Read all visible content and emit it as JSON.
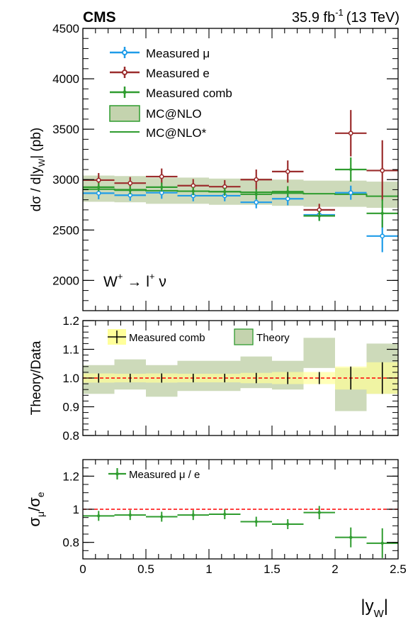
{
  "header": {
    "experiment": "CMS",
    "luminosity": "35.9 fb",
    "lumi_exponent": "-1",
    "energy": "(13 TeV)"
  },
  "colors": {
    "mu": "#1f9ce8",
    "e": "#9b2d2d",
    "comb": "#2f9c2f",
    "mc_fill": "#c4d3ae",
    "mc_edge": "#2f9c2f",
    "unc_band": "#ffff9a",
    "ref_line": "#ff0000"
  },
  "chart_data": [
    {
      "type": "scatter",
      "panel": "top",
      "ylabel_parts": [
        "dσ / d|y",
        "W",
        "| (pb)"
      ],
      "ylim": [
        1700,
        4500
      ],
      "xlim": [
        0,
        2.5
      ],
      "yticks": [
        2000,
        2500,
        3000,
        3500,
        4000,
        4500
      ],
      "annotation": {
        "main": "W",
        "sup1": "+",
        "arrow": "→ l",
        "sup2": "+",
        "tail": " ν"
      },
      "bin_edges": [
        0,
        0.25,
        0.5,
        0.75,
        1.0,
        1.25,
        1.5,
        1.75,
        2.0,
        2.25,
        2.5
      ],
      "series": [
        {
          "name": "Measured μ",
          "key": "mu",
          "x": [
            0.125,
            0.375,
            0.625,
            0.875,
            1.125,
            1.375,
            1.625,
            1.875,
            2.125,
            2.375
          ],
          "values": [
            2865,
            2845,
            2870,
            2840,
            2840,
            2775,
            2810,
            2650,
            2870,
            2440
          ],
          "err": [
            60,
            55,
            60,
            55,
            55,
            60,
            65,
            60,
            70,
            160
          ]
        },
        {
          "name": "Measured e",
          "key": "e",
          "x": [
            0.125,
            0.375,
            0.625,
            0.875,
            1.125,
            1.375,
            1.625,
            1.875,
            2.125,
            2.375
          ],
          "values": [
            2995,
            2965,
            3030,
            2940,
            2930,
            3000,
            3080,
            2700,
            3460,
            3090
          ],
          "err": [
            70,
            60,
            80,
            65,
            65,
            100,
            110,
            60,
            230,
            300
          ]
        },
        {
          "name": "Measured comb",
          "key": "comb",
          "x": [
            0.125,
            0.375,
            0.625,
            0.875,
            1.125,
            1.375,
            1.625,
            1.875,
            2.125,
            2.375
          ],
          "values": [
            2925,
            2895,
            2925,
            2885,
            2880,
            2855,
            2880,
            2640,
            3100,
            2665
          ],
          "err": [
            40,
            40,
            45,
            40,
            40,
            50,
            55,
            50,
            120,
            140
          ]
        },
        {
          "name": "MC@NLO",
          "key": "mc_band",
          "values": [
            2910,
            2905,
            2890,
            2890,
            2880,
            2880,
            2870,
            2860,
            2860,
            2850
          ],
          "err": [
            130,
            130,
            130,
            130,
            130,
            130,
            130,
            130,
            130,
            130
          ]
        },
        {
          "name": "MC@NLO*",
          "key": "mc_line",
          "values": [
            2905,
            2900,
            2890,
            2885,
            2880,
            2875,
            2865,
            2860,
            2855,
            2835
          ]
        }
      ]
    },
    {
      "type": "scatter",
      "panel": "middle",
      "ylabel": "Theory/Data",
      "ylim": [
        0.8,
        1.2
      ],
      "yticks": [
        0.8,
        0.9,
        1.0,
        1.1,
        1.2
      ],
      "ytick_labels": [
        "0.8",
        "0.9",
        "1.0",
        "1.1",
        "1.2"
      ],
      "series": [
        {
          "name": "Measured comb",
          "x": [
            0.125,
            0.375,
            0.625,
            0.875,
            1.125,
            1.375,
            1.625,
            1.875,
            2.125,
            2.375
          ],
          "values": [
            1,
            1,
            1,
            1,
            1,
            1,
            1,
            1,
            1,
            1
          ],
          "err": [
            0.016,
            0.015,
            0.016,
            0.015,
            0.015,
            0.018,
            0.021,
            0.021,
            0.04,
            0.055
          ]
        },
        {
          "name": "Theory",
          "low": [
            0.945,
            0.96,
            0.935,
            0.955,
            0.955,
            0.965,
            0.96,
            1.035,
            0.885,
            0.945
          ],
          "high": [
            1.045,
            1.065,
            1.045,
            1.06,
            1.06,
            1.075,
            1.06,
            1.14,
            1.035,
            1.12
          ]
        }
      ]
    },
    {
      "type": "scatter",
      "panel": "bottom",
      "ylabel_parts": [
        "σ",
        "μ",
        "/σ",
        "e"
      ],
      "xlabel_parts": [
        "|y",
        "W",
        "|"
      ],
      "ylim": [
        0.7,
        1.3
      ],
      "xlim": [
        0,
        2.5
      ],
      "yticks": [
        0.8,
        1.0,
        1.2
      ],
      "ytick_labels": [
        "0.8",
        "1",
        "1.2"
      ],
      "xticks": [
        0,
        0.5,
        1,
        1.5,
        2,
        2.5
      ],
      "xtick_labels": [
        "0",
        "0.5",
        "1",
        "1.5",
        "2",
        "2.5"
      ],
      "reference": 1.0,
      "series": [
        {
          "name": "Measured μ / e",
          "x": [
            0.125,
            0.375,
            0.625,
            0.875,
            1.125,
            1.375,
            1.625,
            1.875,
            2.125,
            2.375
          ],
          "values": [
            0.96,
            0.965,
            0.955,
            0.965,
            0.97,
            0.925,
            0.91,
            0.98,
            0.83,
            0.795
          ],
          "err": [
            0.03,
            0.03,
            0.03,
            0.03,
            0.03,
            0.03,
            0.03,
            0.04,
            0.06,
            0.09
          ]
        }
      ]
    }
  ]
}
